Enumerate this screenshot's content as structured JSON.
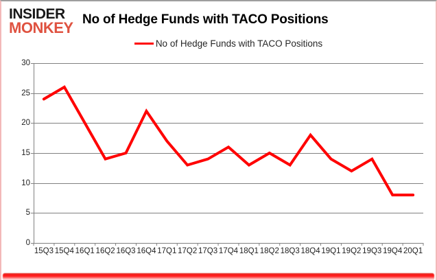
{
  "logo": {
    "line1": "INSIDER",
    "line2": "MONKEY"
  },
  "header": {
    "title": "No of Hedge Funds with TACO Positions"
  },
  "legend": {
    "label": "No of Hedge Funds with TACO Positions"
  },
  "chart_data": {
    "type": "line",
    "title": "No of Hedge Funds with TACO Positions",
    "series_name": "No of Hedge Funds with TACO Positions",
    "categories": [
      "15Q3",
      "15Q4",
      "16Q1",
      "16Q2",
      "16Q3",
      "16Q4",
      "17Q1",
      "17Q2",
      "17Q3",
      "17Q4",
      "18Q1",
      "18Q2",
      "18Q3",
      "18Q4",
      "19Q1",
      "19Q2",
      "19Q3",
      "19Q4",
      "20Q1"
    ],
    "values": [
      24,
      26,
      20,
      14,
      15,
      22,
      17,
      13,
      14,
      16,
      13,
      15,
      13,
      18,
      14,
      12,
      14,
      8,
      8
    ],
    "ylim": [
      0,
      30
    ],
    "yticks": [
      0,
      5,
      10,
      15,
      20,
      25,
      30
    ],
    "grid": true,
    "legend_position": "top-center",
    "line_color": "#ff0000",
    "grid_color": "#808080",
    "tick_label_color": "#1f1f1f",
    "logo_red": "#df5240",
    "logo_black": "#181818"
  }
}
